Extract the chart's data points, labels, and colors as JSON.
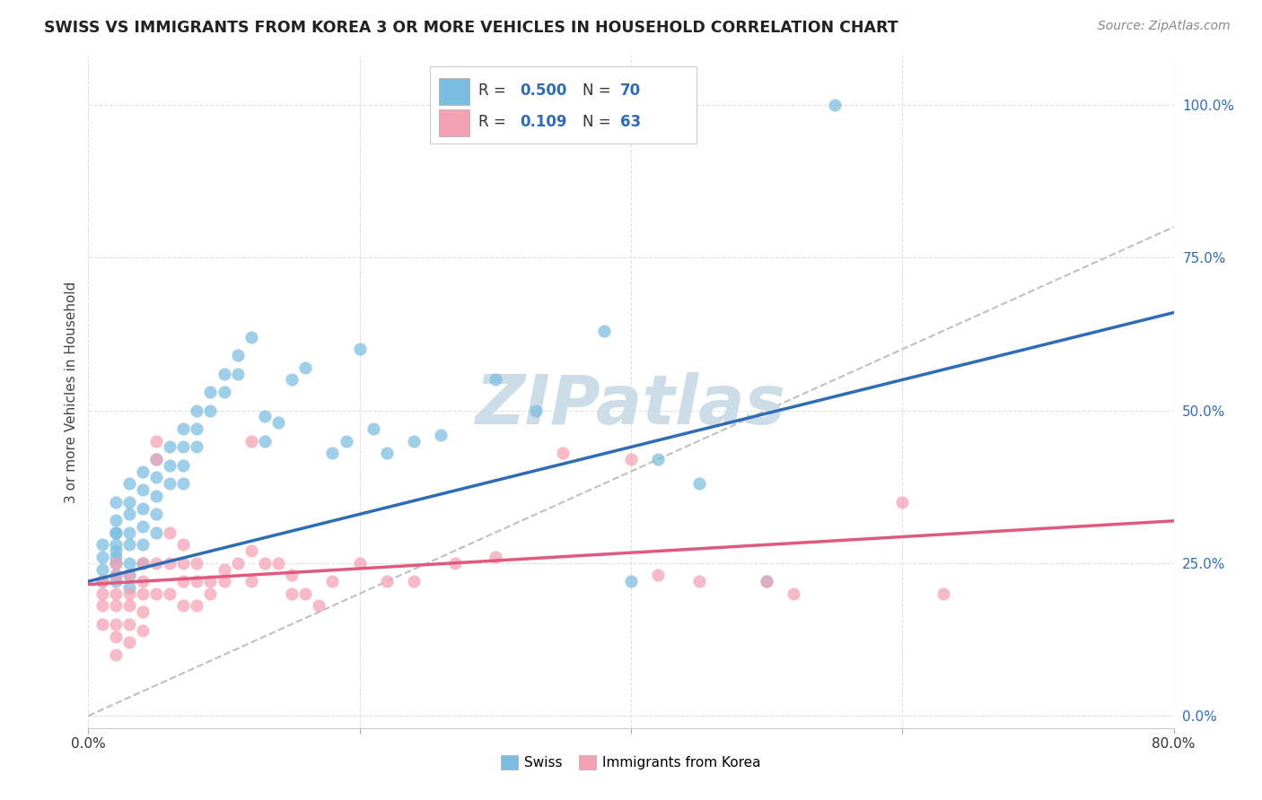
{
  "title": "SWISS VS IMMIGRANTS FROM KOREA 3 OR MORE VEHICLES IN HOUSEHOLD CORRELATION CHART",
  "source": "Source: ZipAtlas.com",
  "ylabel": "3 or more Vehicles in Household",
  "ytick_labels": [
    "0.0%",
    "25.0%",
    "50.0%",
    "75.0%",
    "100.0%"
  ],
  "ytick_values": [
    0.0,
    0.25,
    0.5,
    0.75,
    1.0
  ],
  "xlim": [
    0.0,
    0.8
  ],
  "ylim": [
    -0.02,
    1.08
  ],
  "swiss_R": 0.5,
  "swiss_N": 70,
  "korea_R": 0.109,
  "korea_N": 63,
  "swiss_color": "#7abde0",
  "korea_color": "#f4a0b5",
  "swiss_line_color": "#2e6db4",
  "korea_line_color": "#e05a80",
  "diagonal_color": "#c0c0c0",
  "background_color": "#ffffff",
  "grid_color": "#e0e0e0",
  "swiss_scatter_x": [
    0.01,
    0.01,
    0.01,
    0.01,
    0.02,
    0.02,
    0.02,
    0.02,
    0.02,
    0.02,
    0.02,
    0.02,
    0.02,
    0.02,
    0.03,
    0.03,
    0.03,
    0.03,
    0.03,
    0.03,
    0.03,
    0.03,
    0.04,
    0.04,
    0.04,
    0.04,
    0.04,
    0.04,
    0.05,
    0.05,
    0.05,
    0.05,
    0.05,
    0.06,
    0.06,
    0.06,
    0.07,
    0.07,
    0.07,
    0.07,
    0.08,
    0.08,
    0.08,
    0.09,
    0.09,
    0.1,
    0.1,
    0.11,
    0.11,
    0.12,
    0.13,
    0.13,
    0.14,
    0.15,
    0.16,
    0.18,
    0.19,
    0.2,
    0.21,
    0.22,
    0.24,
    0.26,
    0.3,
    0.33,
    0.38,
    0.4,
    0.42,
    0.45,
    0.5,
    0.55
  ],
  "swiss_scatter_y": [
    0.28,
    0.26,
    0.24,
    0.22,
    0.35,
    0.32,
    0.3,
    0.28,
    0.26,
    0.25,
    0.23,
    0.22,
    0.3,
    0.27,
    0.38,
    0.35,
    0.33,
    0.3,
    0.28,
    0.25,
    0.23,
    0.21,
    0.4,
    0.37,
    0.34,
    0.31,
    0.28,
    0.25,
    0.42,
    0.39,
    0.36,
    0.33,
    0.3,
    0.44,
    0.41,
    0.38,
    0.47,
    0.44,
    0.41,
    0.38,
    0.5,
    0.47,
    0.44,
    0.53,
    0.5,
    0.56,
    0.53,
    0.59,
    0.56,
    0.62,
    0.49,
    0.45,
    0.48,
    0.55,
    0.57,
    0.43,
    0.45,
    0.6,
    0.47,
    0.43,
    0.45,
    0.46,
    0.55,
    0.5,
    0.63,
    0.22,
    0.42,
    0.38,
    0.22,
    1.0
  ],
  "korea_scatter_x": [
    0.01,
    0.01,
    0.01,
    0.01,
    0.02,
    0.02,
    0.02,
    0.02,
    0.02,
    0.02,
    0.02,
    0.03,
    0.03,
    0.03,
    0.03,
    0.03,
    0.04,
    0.04,
    0.04,
    0.04,
    0.04,
    0.05,
    0.05,
    0.05,
    0.05,
    0.06,
    0.06,
    0.06,
    0.07,
    0.07,
    0.07,
    0.07,
    0.08,
    0.08,
    0.08,
    0.09,
    0.09,
    0.1,
    0.1,
    0.11,
    0.12,
    0.12,
    0.12,
    0.13,
    0.14,
    0.15,
    0.15,
    0.16,
    0.17,
    0.18,
    0.2,
    0.22,
    0.24,
    0.27,
    0.3,
    0.35,
    0.4,
    0.42,
    0.45,
    0.5,
    0.52,
    0.6,
    0.63
  ],
  "korea_scatter_y": [
    0.22,
    0.2,
    0.18,
    0.15,
    0.25,
    0.23,
    0.2,
    0.18,
    0.15,
    0.13,
    0.1,
    0.23,
    0.2,
    0.18,
    0.15,
    0.12,
    0.25,
    0.22,
    0.2,
    0.17,
    0.14,
    0.45,
    0.42,
    0.25,
    0.2,
    0.3,
    0.25,
    0.2,
    0.28,
    0.25,
    0.22,
    0.18,
    0.25,
    0.22,
    0.18,
    0.22,
    0.2,
    0.24,
    0.22,
    0.25,
    0.45,
    0.27,
    0.22,
    0.25,
    0.25,
    0.23,
    0.2,
    0.2,
    0.18,
    0.22,
    0.25,
    0.22,
    0.22,
    0.25,
    0.26,
    0.43,
    0.42,
    0.23,
    0.22,
    0.22,
    0.2,
    0.35,
    0.2
  ],
  "watermark": "ZIPatlas",
  "watermark_color": "#cddde8"
}
